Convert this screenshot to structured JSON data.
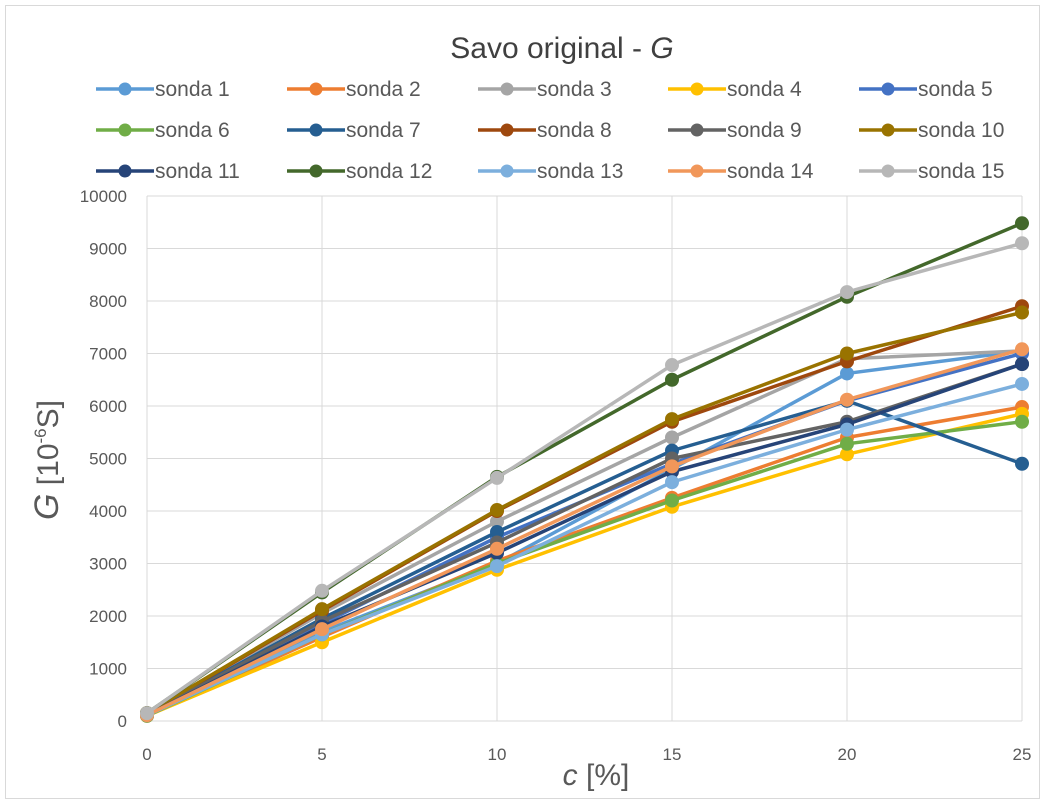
{
  "chart_data": {
    "type": "line",
    "title": "Savo original - ",
    "title_italic": "G",
    "xlabel_italic": "c",
    "xlabel_rest": " [%]",
    "ylabel_italic": "G",
    "ylabel_open": " [10",
    "ylabel_sup": "-6",
    "ylabel_close": "S]",
    "x": [
      0,
      5,
      10,
      15,
      20,
      25
    ],
    "xlim": [
      0,
      25
    ],
    "ylim": [
      0,
      10000
    ],
    "x_ticks": [
      0,
      5,
      10,
      15,
      20,
      25
    ],
    "y_ticks": [
      0,
      1000,
      2000,
      3000,
      4000,
      5000,
      6000,
      7000,
      8000,
      9000,
      10000
    ],
    "grid": true,
    "legend_position": "top",
    "series": [
      {
        "name": "sonda 1",
        "color": "#5B9BD5",
        "values": [
          100,
          1700,
          3000,
          4800,
          6620,
          7050
        ]
      },
      {
        "name": "sonda 2",
        "color": "#ED7D31",
        "values": [
          100,
          1600,
          3050,
          4250,
          5400,
          5980
        ]
      },
      {
        "name": "sonda 3",
        "color": "#A5A5A5",
        "values": [
          150,
          2050,
          3800,
          5400,
          6900,
          7050
        ]
      },
      {
        "name": "sonda 4",
        "color": "#FFC000",
        "values": [
          100,
          1500,
          2880,
          4080,
          5080,
          5850
        ]
      },
      {
        "name": "sonda 5",
        "color": "#4472C4",
        "values": [
          120,
          1850,
          3500,
          4900,
          6100,
          7000
        ]
      },
      {
        "name": "sonda 6",
        "color": "#70AD47",
        "values": [
          100,
          1650,
          3000,
          4200,
          5280,
          5700
        ]
      },
      {
        "name": "sonda 7",
        "color": "#255E91",
        "values": [
          130,
          1950,
          3600,
          5150,
          6100,
          4900
        ]
      },
      {
        "name": "sonda 8",
        "color": "#9E480E",
        "values": [
          150,
          2100,
          4000,
          5700,
          6850,
          7900
        ]
      },
      {
        "name": "sonda 9",
        "color": "#636363",
        "values": [
          130,
          1900,
          3400,
          5000,
          5700,
          6800
        ]
      },
      {
        "name": "sonda 10",
        "color": "#997300",
        "values": [
          150,
          2130,
          4020,
          5750,
          7000,
          7780
        ]
      },
      {
        "name": "sonda 11",
        "color": "#264478",
        "values": [
          110,
          1800,
          3200,
          4750,
          5650,
          6800
        ]
      },
      {
        "name": "sonda 12",
        "color": "#43682B",
        "values": [
          150,
          2450,
          4650,
          6500,
          8080,
          9480
        ]
      },
      {
        "name": "sonda 13",
        "color": "#7CAFDD",
        "values": [
          110,
          1650,
          2950,
          4550,
          5550,
          6420
        ]
      },
      {
        "name": "sonda 14",
        "color": "#F1975A",
        "values": [
          110,
          1750,
          3280,
          4850,
          6120,
          7080
        ]
      },
      {
        "name": "sonda 15",
        "color": "#B7B7B7",
        "values": [
          150,
          2480,
          4630,
          6780,
          8170,
          9100
        ]
      }
    ]
  }
}
